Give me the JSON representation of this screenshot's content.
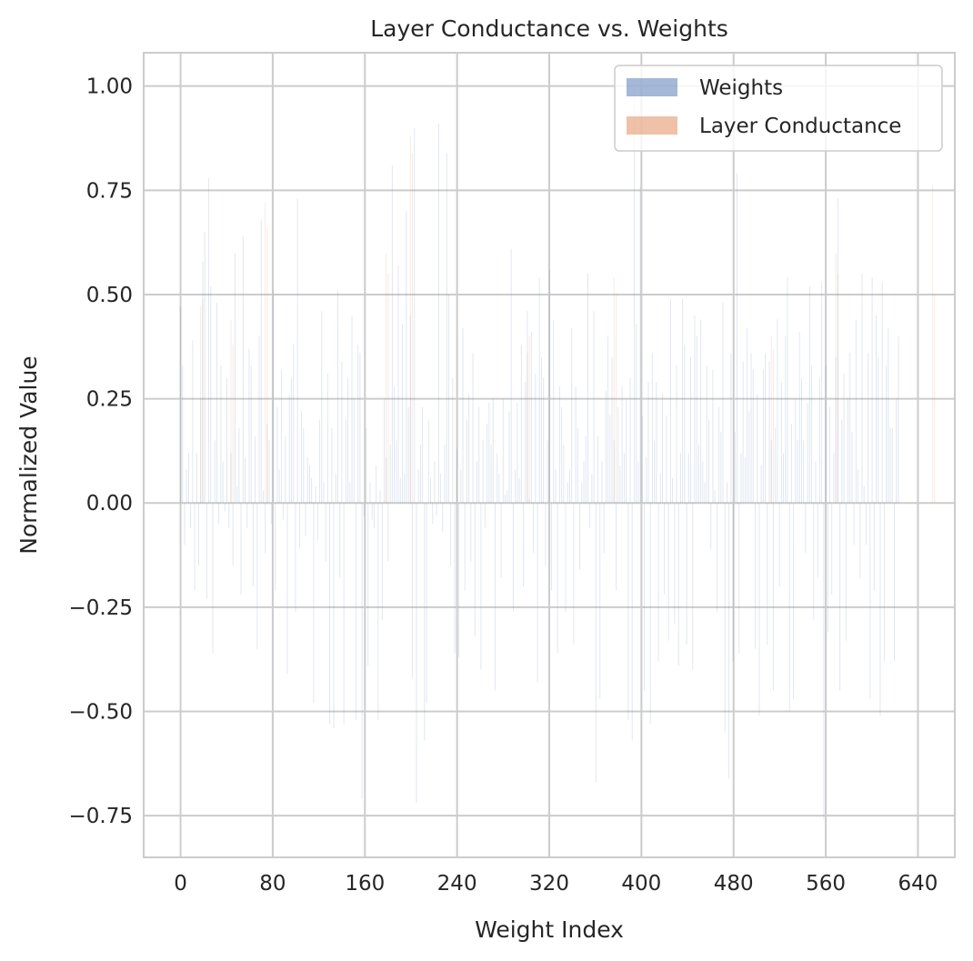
{
  "chart_data": {
    "type": "bar",
    "title": "Layer Conductance vs. Weights",
    "xlabel": "Weight Index",
    "ylabel": "Normalized Value",
    "xlim": [
      -32,
      672
    ],
    "ylim": [
      -0.85,
      1.08
    ],
    "xticks": [
      0,
      80,
      160,
      240,
      320,
      400,
      480,
      560,
      640
    ],
    "xtick_labels": [
      "0",
      "80",
      "160",
      "240",
      "320",
      "400",
      "480",
      "560",
      "640"
    ],
    "yticks": [
      -0.75,
      -0.5,
      -0.25,
      0.0,
      0.25,
      0.5,
      0.75,
      1.0
    ],
    "ytick_labels": [
      "−0.75",
      "−0.50",
      "−0.25",
      "0.00",
      "0.25",
      "0.50",
      "0.75",
      "1.00"
    ],
    "grid": true,
    "legend_position": "top-right",
    "x_start": 0,
    "series": [
      {
        "name": "Weights",
        "color": "#4c72b0",
        "alpha": 0.5,
        "values": [
          0.47,
          0.33,
          -0.1,
          0.08,
          0.12,
          -0.06,
          0.39,
          -0.21,
          0.12,
          -0.15,
          0.25,
          0.58,
          0.65,
          -0.23,
          0.78,
          0.52,
          -0.36,
          0.15,
          0.48,
          -0.05,
          0.33,
          0.1,
          -0.02,
          0.3,
          -0.06,
          0.12,
          -0.15,
          0.6,
          0.04,
          0.18,
          -0.22,
          0.64,
          0.11,
          -0.06,
          0.37,
          0.33,
          -0.2,
          0.16,
          -0.35,
          0.4,
          0.68,
          0.03,
          -0.12,
          0.19,
          0.15,
          -0.05,
          0.51,
          -0.21,
          0.23,
          0.08,
          0.32,
          -0.04,
          0.16,
          -0.41,
          0.26,
          0.3,
          0.38,
          -0.26,
          0.73,
          -0.11,
          0.22,
          0.18,
          -0.08,
          0.11,
          0.09,
          0.06,
          -0.48,
          0.04,
          -0.09,
          0.2,
          0.46,
          0.05,
          -0.14,
          0.31,
          -0.53,
          0.18,
          -0.54,
          0.07,
          0.51,
          -0.18,
          0.34,
          -0.53,
          0.2,
          0.3,
          0.05,
          0.45,
          0.25,
          -0.52,
          0.38,
          0.36,
          -0.71,
          -0.03,
          0.18,
          -0.39,
          0.05,
          -0.04,
          -0.06,
          0.09,
          -0.52,
          0.03,
          -0.28,
          0.25,
          0.11,
          -0.14,
          0.14,
          0.81,
          0.28,
          0.15,
          0.57,
          0.06,
          0.43,
          0.07,
          0.7,
          0.23,
          0.45,
          -0.42,
          0.9,
          -0.72,
          0.08,
          0.14,
          0.23,
          -0.57,
          -0.48,
          0.2,
          0.06,
          -0.05,
          0.1,
          -0.03,
          0.91,
          0.07,
          -0.07,
          0.14,
          0.84,
          0.5,
          -0.15,
          0.3,
          -0.36,
          0.13,
          -0.37,
          0.08,
          0.42,
          -0.21,
          0.2,
          0.26,
          -0.14,
          0.36,
          -0.32,
          0.1,
          0.23,
          -0.4,
          0.15,
          -0.06,
          0.19,
          0.24,
          0.14,
          0.25,
          -0.45,
          0.12,
          0.07,
          -0.18,
          0.25,
          0.02,
          0.03,
          0.22,
          0.61,
          -0.26,
          0.08,
          0.24,
          0.06,
          0.38,
          -0.2,
          0.29,
          0.46,
          0.01,
          0.41,
          -0.12,
          0.31,
          -0.43,
          0.54,
          0.35,
          0.3,
          -0.15,
          0.15,
          0.56,
          -0.21,
          0.44,
          0.08,
          -0.36,
          0.28,
          0.23,
          0.14,
          -0.26,
          0.05,
          0.08,
          0.42,
          -0.34,
          0.28,
          0.18,
          -0.16,
          0.05,
          0.1,
          0.16,
          0.55,
          -0.06,
          0.07,
          0.46,
          -0.67,
          0.16,
          -0.47,
          0.1,
          -0.12,
          0.27,
          0.4,
          0.21,
          0.35,
          0.15,
          -0.21,
          0.23,
          0.09,
          0.28,
          0.12,
          0.25,
          -0.52,
          0.3,
          -0.57,
          1.0,
          0.43,
          0.1,
          0.76,
          0.21,
          -0.45,
          0.11,
          0.29,
          -0.53,
          0.36,
          0.15,
          0.29,
          -0.38,
          0.07,
          0.26,
          -0.22,
          0.21,
          -0.33,
          0.49,
          0.06,
          -0.29,
          0.33,
          -0.39,
          0.12,
          0.49,
          0.38,
          -0.34,
          0.12,
          0.35,
          -0.4,
          0.45,
          0.4,
          0.14,
          0.44,
          0.1,
          0.05,
          0.33,
          0.2,
          -0.11,
          0.32,
          0.03,
          -0.26,
          0.23,
          0.17,
          0.48,
          -0.55,
          0.05,
          -0.66,
          0.36,
          -0.38,
          0.17,
          0.79,
          -0.36,
          0.12,
          0.34,
          0.11,
          0.42,
          0.22,
          0.36,
          0.32,
          -0.35,
          0.26,
          -0.51,
          0.09,
          0.32,
          0.36,
          -0.34,
          0.34,
          0.15,
          -0.45,
          0.18,
          0.44,
          -0.2,
          0.29,
          0.12,
          0.4,
          0.54,
          -0.5,
          0.19,
          -0.47,
          0.25,
          0.15,
          0.41,
          0.3,
          0.15,
          -0.12,
          0.24,
          0.52,
          0.33,
          -0.28,
          0.1,
          -0.18,
          0.3,
          0.53,
          -0.76,
          0.33,
          -0.31,
          0.23,
          -0.22,
          0.12,
          0.35,
          0.73,
          -0.45,
          0.2,
          0.31,
          -0.33,
          0.25,
          0.36,
          0.17,
          -0.1,
          0.44,
          0.08,
          -0.18,
          0.55,
          0.04,
          -0.1,
          0.36,
          -0.47,
          0.54,
          -0.21,
          0.45,
          0.35,
          -0.51,
          0.53,
          -0.38,
          0.33,
          0.42,
          0.18,
          0.18,
          -0.38,
          0.25,
          0.4
        ]
      },
      {
        "name": "Layer Conductance",
        "color": "#dd8452",
        "alpha": 0.5,
        "values": [
          0.0,
          0.0,
          0.0,
          0.0,
          0.0,
          0.0,
          0.0,
          0.0,
          0.0,
          0.0,
          0.47,
          0.49,
          0.0,
          0.0,
          0.0,
          0.0,
          0.0,
          0.0,
          0.0,
          0.0,
          0.0,
          0.0,
          0.0,
          0.0,
          0.0,
          0.44,
          0.38,
          0.0,
          0.0,
          0.0,
          0.0,
          0.0,
          0.0,
          0.0,
          0.0,
          0.0,
          0.0,
          0.0,
          0.0,
          0.0,
          0.0,
          0.0,
          0.72,
          0.66,
          0.0,
          0.0,
          0.0,
          0.0,
          0.0,
          0.0,
          0.0,
          0.0,
          0.0,
          0.0,
          0.0,
          0.0,
          0.0,
          0.0,
          0.0,
          0.0,
          0.0,
          0.0,
          0.0,
          0.0,
          0.0,
          0.0,
          0.0,
          0.0,
          0.0,
          0.0,
          0.0,
          0.0,
          0.0,
          0.0,
          0.0,
          0.0,
          0.0,
          0.0,
          0.0,
          0.0,
          0.0,
          0.0,
          0.0,
          0.0,
          0.0,
          0.0,
          0.0,
          0.0,
          0.0,
          0.0,
          0.0,
          0.0,
          0.0,
          0.0,
          0.0,
          0.0,
          0.0,
          0.0,
          0.0,
          0.0,
          0.0,
          0.0,
          0.6,
          0.55,
          0.0,
          0.0,
          0.0,
          0.0,
          0.0,
          0.0,
          0.0,
          0.0,
          0.0,
          0.0,
          0.88,
          0.84,
          0.0,
          0.0,
          0.0,
          0.0,
          0.0,
          0.0,
          0.0,
          0.0,
          0.0,
          0.0,
          0.0,
          0.0,
          0.0,
          0.0,
          0.0,
          0.0,
          0.0,
          0.0,
          0.0,
          0.0,
          0.0,
          0.0,
          0.0,
          0.0,
          0.0,
          0.0,
          0.0,
          0.0,
          0.0,
          0.0,
          0.0,
          0.0,
          0.0,
          0.0,
          0.0,
          0.0,
          0.0,
          0.0,
          0.0,
          0.0,
          0.0,
          0.0,
          0.0,
          0.0,
          0.0,
          0.0,
          0.0,
          0.0,
          0.0,
          0.0,
          0.0,
          0.0,
          0.0,
          0.0,
          0.0,
          0.0,
          0.36,
          0.4,
          0.0,
          0.0,
          0.0,
          0.0,
          0.0,
          0.0,
          0.0,
          0.0,
          0.0,
          0.0,
          0.0,
          0.0,
          0.0,
          0.0,
          0.0,
          0.0,
          0.0,
          0.0,
          0.0,
          0.0,
          0.0,
          0.0,
          0.0,
          0.0,
          0.0,
          0.0,
          0.0,
          0.0,
          0.0,
          0.0,
          0.0,
          0.0,
          0.0,
          0.0,
          0.0,
          0.0,
          0.0,
          0.0,
          0.0,
          0.0,
          0.0,
          0.54,
          0.5,
          0.0,
          0.0,
          0.0,
          0.0,
          0.0,
          0.0,
          0.0,
          0.0,
          0.0,
          0.0,
          0.0,
          0.0,
          0.0,
          0.0,
          0.0,
          0.0,
          0.0,
          0.0,
          0.0,
          0.0,
          0.0,
          0.0,
          0.0,
          0.0,
          0.0,
          0.0,
          0.0,
          0.0,
          0.0,
          0.0,
          0.0,
          0.0,
          0.0,
          0.0,
          0.0,
          0.0,
          0.0,
          0.0,
          0.0,
          0.0,
          0.0,
          0.0,
          0.0,
          0.0,
          0.0,
          0.0,
          0.0,
          0.0,
          0.0,
          0.0,
          0.0,
          0.0,
          0.0,
          0.0,
          0.0,
          0.0,
          0.0,
          0.0,
          0.0,
          0.0,
          0.0,
          0.0,
          0.0,
          0.0,
          0.0,
          0.0,
          0.0,
          0.0,
          0.0,
          0.0,
          0.0,
          0.0,
          0.0,
          0.0,
          0.0,
          0.0,
          0.4,
          0.37,
          0.0,
          0.0,
          0.0,
          0.0,
          0.0,
          0.0,
          0.0,
          0.0,
          0.0,
          0.0,
          0.0,
          0.0,
          0.0,
          0.0,
          0.0,
          0.0,
          0.0,
          0.0,
          0.0,
          0.0,
          0.0,
          0.0,
          0.0,
          0.0,
          0.0,
          0.0,
          0.0,
          0.0,
          0.0,
          0.0,
          0.6,
          0.55,
          0.0,
          0.0,
          0.0,
          0.0,
          0.0,
          0.0,
          0.0,
          0.0,
          0.0,
          0.0,
          0.0,
          0.0,
          0.0,
          0.0,
          0.0,
          0.0,
          0.0,
          0.0,
          0.0,
          0.0,
          0.0,
          0.0,
          0.0,
          0.0,
          0.0,
          0.0,
          0.0,
          0.0,
          0.0,
          0.0,
          0.0,
          0.0,
          0.0,
          0.0,
          0.0,
          0.0,
          0.0,
          0.0,
          0.0,
          0.0,
          0.0,
          0.0,
          0.0,
          0.0,
          0.0,
          0.0,
          0.76,
          0.5
        ]
      }
    ]
  }
}
